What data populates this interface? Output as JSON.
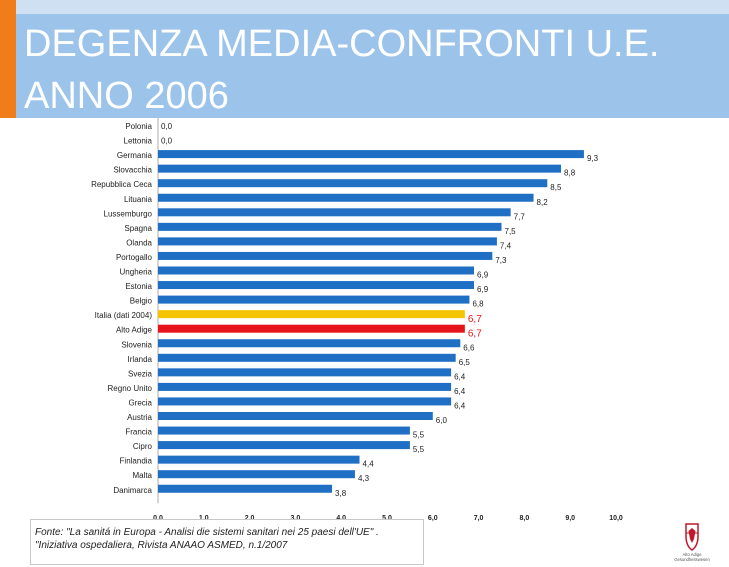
{
  "header": {
    "title_line1": "DEGENZA MEDIA-CONFRONTI U.E.",
    "title_line2": "ANNO 2006"
  },
  "footer": {
    "source_line1": "Fonte: \"La sanitá in Europa - Analisi die sistemi sanitari nei 25 paesi dell'UE\" .",
    "source_line2": "\"Iniziativa ospedaliera, Rivista ANAAO ASMED, n.1/2007"
  },
  "chart_data": {
    "type": "bar",
    "orientation": "horizontal",
    "title": "DEGENZA MEDIA-CONFRONTI U.E. ANNO 2006",
    "xlim": [
      0,
      10
    ],
    "xticks": [
      "0,0",
      "1,0",
      "2,0",
      "3,0",
      "4,0",
      "5,0",
      "6,0",
      "7,0",
      "8,0",
      "9,0",
      "10,0"
    ],
    "categories": [
      "Polonia",
      "Lettonia",
      "Germania",
      "Slovacchia",
      "Repubblica Ceca",
      "Lituania",
      "Lussemburgo",
      "Spagna",
      "Olanda",
      "Portogallo",
      "Ungheria",
      "Estonia",
      "Belgio",
      "Italia (dati 2004)",
      "Alto Adige",
      "Slovenia",
      "Irlanda",
      "Svezia",
      "Regno Unito",
      "Grecia",
      "Austria",
      "Francia",
      "Cipro",
      "Finlandia",
      "Malta",
      "Danimarca"
    ],
    "values": [
      0.0,
      0.0,
      9.3,
      8.8,
      8.5,
      8.2,
      7.7,
      7.5,
      7.4,
      7.3,
      6.9,
      6.9,
      6.8,
      6.7,
      6.7,
      6.6,
      6.5,
      6.4,
      6.4,
      6.4,
      6.0,
      5.5,
      5.5,
      4.4,
      4.3,
      3.8
    ],
    "value_labels": [
      "0,0",
      "0,0",
      "9,3",
      "8,8",
      "8,5",
      "8,2",
      "7,7",
      "7,5",
      "7,4",
      "7,3",
      "6,9",
      "6,9",
      "6,8",
      "6,7",
      "6,7",
      "6,6",
      "6,5",
      "6,4",
      "6,4",
      "6,4",
      "6,0",
      "5,5",
      "5,5",
      "4,4",
      "4,3",
      "3,8"
    ],
    "colors": {
      "default": "#1f6fc5",
      "highlight_italia": "#f5c400",
      "highlight_alto_adige": "#e8141c",
      "highlight_label": "#e8141c"
    },
    "highlighted": {
      "Italia (dati 2004)": "highlight_italia",
      "Alto Adige": "highlight_alto_adige"
    }
  },
  "logo": {
    "icon": "eagle-crest-icon",
    "text_line1": "Alto Adige",
    "text_line2": "Gesundheitswesen"
  }
}
